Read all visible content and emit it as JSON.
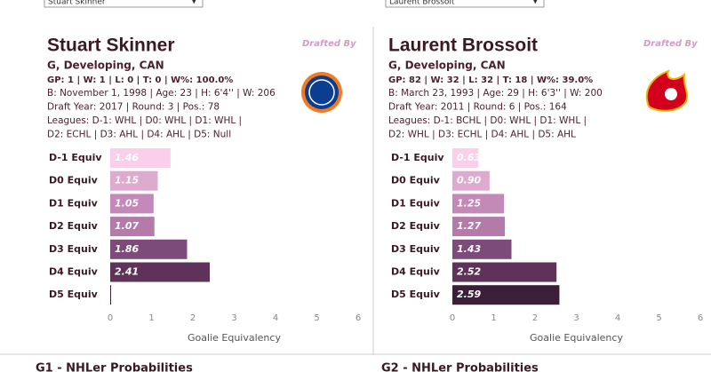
{
  "panels": [
    {
      "selector": "Stuart Skinner",
      "name": "Stuart Skinner",
      "drafted_by": "Drafted By",
      "position": "G, Developing, CAN",
      "stats": "GP: 1 | W: 1 | L: 0 | T: 0 | W%: 100.0%",
      "details": [
        "B: November 1, 1998 | Age: 23 | H: 6'4'' | W: 206",
        "Draft Year: 2017 | Round: 3 | Pos.: 78",
        "Leagues: D-1: WHL | D0: WHL | D1: WHL |",
        "D2: ECHL | D3: AHL | D4: AHL | D5: Null"
      ],
      "probabilities_title": "G1 - NHLer Probabilities"
    },
    {
      "selector": "Laurent Brossoit",
      "name": "Laurent Brossoit",
      "drafted_by": "Drafted By",
      "position": "G, Developing, CAN",
      "stats": "GP: 82 | W: 32 | L: 32 | T: 18 | W%: 39.0%",
      "details": [
        "B: March 23, 1993 | Age: 29 | H: 6'3'' | W: 200",
        "Draft Year: 2011 | Round: 6 | Pos.: 164",
        "Leagues: D-1: BCHL | D0: WHL | D1: WHL |",
        "D2: WHL | D3: ECHL | D4: AHL | D5: AHL"
      ],
      "probabilities_title": "G2 - NHLer Probabilities"
    }
  ],
  "chart_data": [
    {
      "type": "bar",
      "orientation": "horizontal",
      "categories": [
        "D-1 Equiv",
        "D0 Equiv",
        "D1 Equiv",
        "D2  Equiv",
        "D3 Equiv",
        "D4  Equiv",
        "D5 Equiv"
      ],
      "values": [
        1.46,
        1.15,
        1.05,
        1.07,
        1.86,
        2.41,
        0
      ],
      "value_labels": [
        "1.46",
        "1.15",
        "1.05",
        "1.07",
        "1.86",
        "2.41",
        null
      ],
      "colors": [
        "#f9cfe9",
        "#ddabd0",
        "#c48ab7",
        "#b47ba9",
        "#7d4b79",
        "#5e3259",
        "#3b1f38"
      ],
      "xlim": [
        0,
        6
      ],
      "xticks": [
        0,
        1,
        2,
        3,
        4,
        5,
        6
      ],
      "xlabel": "Goalie Equivalency"
    },
    {
      "type": "bar",
      "orientation": "horizontal",
      "categories": [
        "D-1 Equiv",
        "D0 Equiv",
        "D1 Equiv",
        "D2  Equiv",
        "D3 Equiv",
        "D4  Equiv",
        "D5 Equiv"
      ],
      "values": [
        0.63,
        0.9,
        1.25,
        1.27,
        1.43,
        2.52,
        2.59
      ],
      "value_labels": [
        "0.63",
        "0.90",
        "1.25",
        "1.27",
        "1.43",
        "2.52",
        "2.59"
      ],
      "colors": [
        "#f9cfe9",
        "#ddabd0",
        "#c48ab7",
        "#b47ba9",
        "#7d4b79",
        "#5e3259",
        "#3b1f38"
      ],
      "xlim": [
        0,
        6
      ],
      "xticks": [
        0,
        1,
        2,
        3,
        4,
        5,
        6
      ],
      "xlabel": "Goalie Equivalency"
    }
  ]
}
